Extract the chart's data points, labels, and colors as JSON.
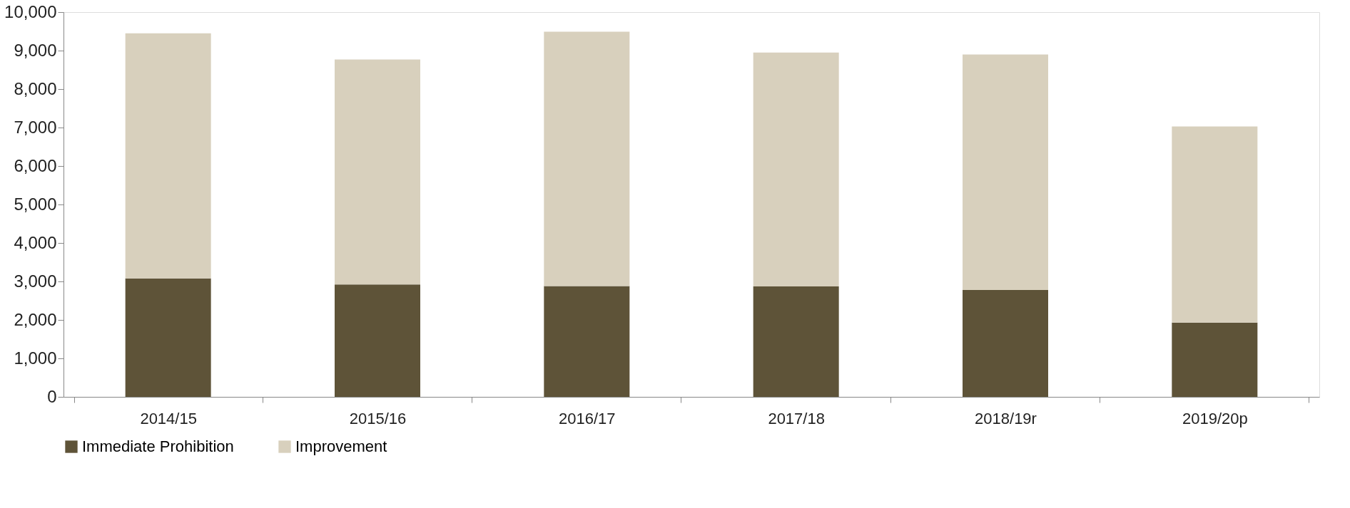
{
  "chart_data": {
    "type": "bar",
    "stacked": true,
    "categories": [
      "2014/15",
      "2015/16",
      "2016/17",
      "2017/18",
      "2018/19r",
      "2019/20p"
    ],
    "series": [
      {
        "name": "Immediate Prohibition",
        "color": "#5e5338",
        "values": [
          3080,
          2920,
          2880,
          2870,
          2780,
          1930
        ]
      },
      {
        "name": "Improvement",
        "color": "#d8d0bd",
        "values": [
          6370,
          5850,
          6610,
          6080,
          6120,
          5100
        ]
      }
    ],
    "ylim": [
      0,
      10000
    ],
    "yticks": [
      0,
      {
        "value": 1000,
        "label": "1,000"
      },
      {
        "value": 2000,
        "label": "2,000"
      },
      {
        "value": 3000,
        "label": "3,000"
      },
      {
        "value": 4000,
        "label": "4,000"
      },
      {
        "value": 5000,
        "label": "5,000"
      },
      {
        "value": 6000,
        "label": "6,000"
      },
      {
        "value": 7000,
        "label": "7,000"
      },
      {
        "value": 8000,
        "label": "8,000"
      },
      {
        "value": 9000,
        "label": "9,000"
      },
      {
        "value": 10000,
        "label": "10,000"
      }
    ],
    "grid": false,
    "legend": "bottom"
  }
}
